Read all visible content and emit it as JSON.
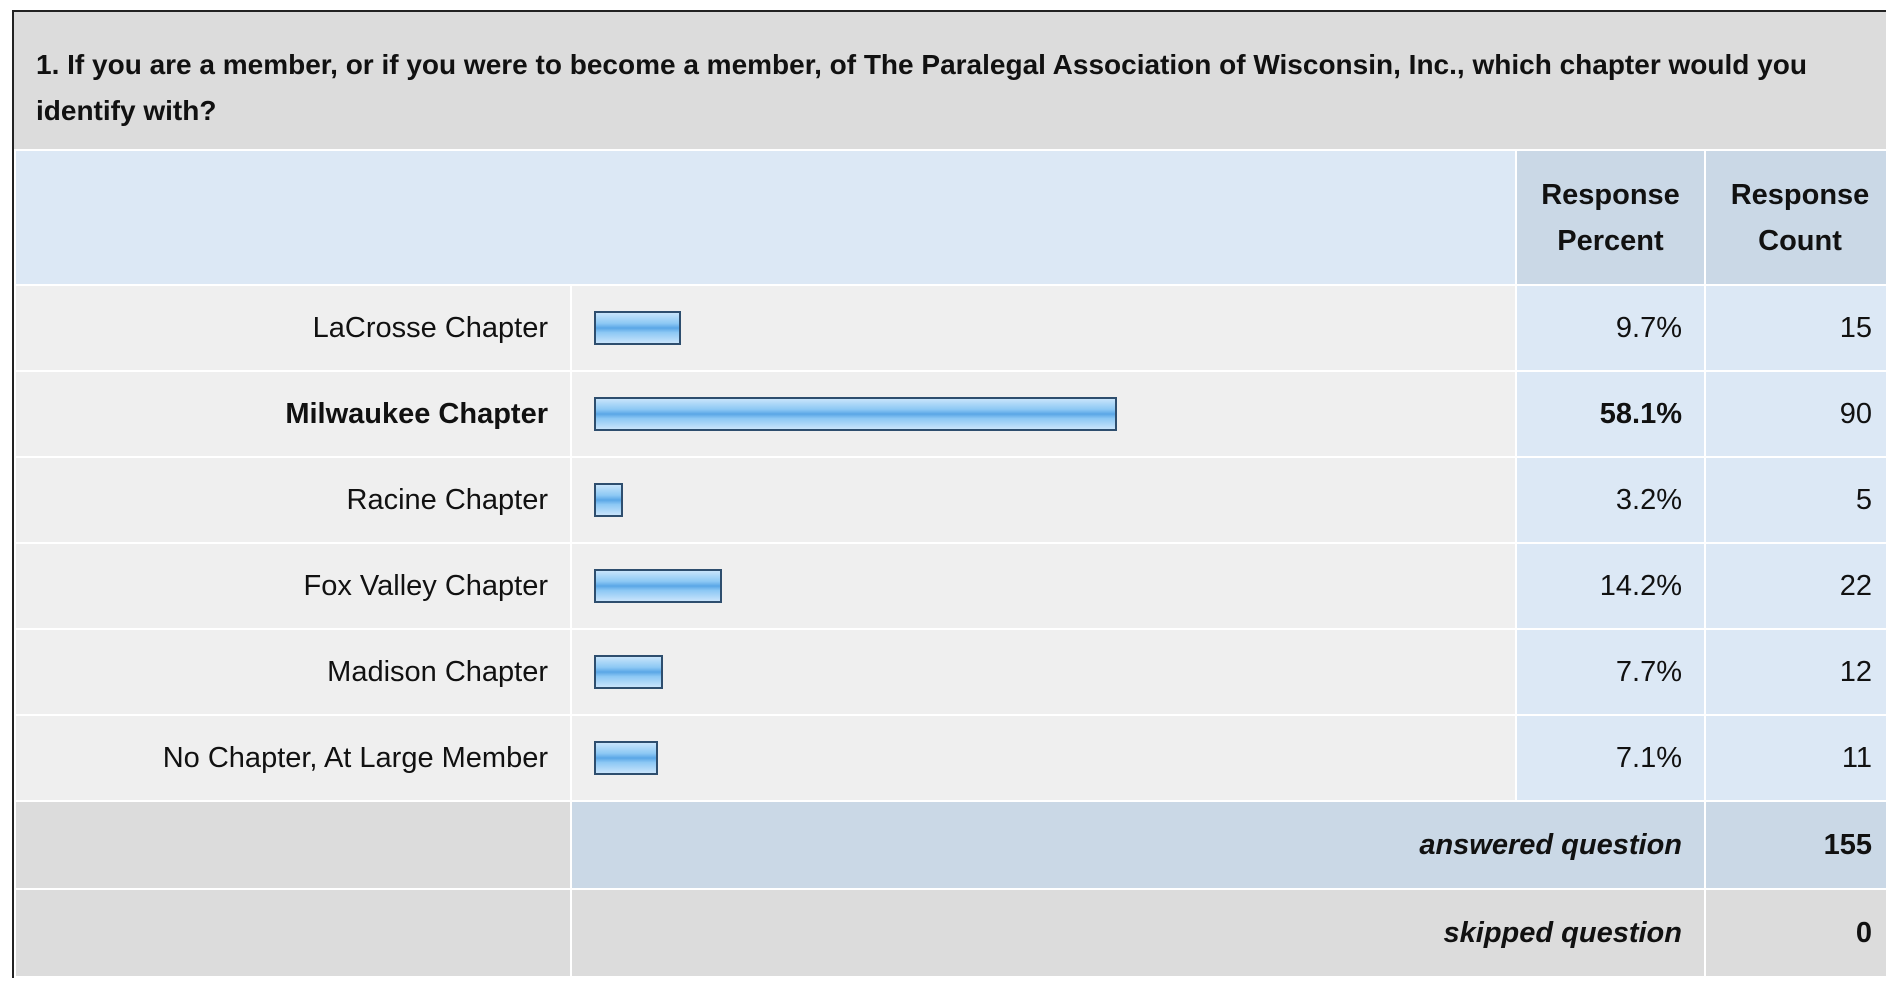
{
  "question": "1. If you are a member, or if you were to become a member, of The Paralegal Association of Wisconsin, Inc., which chapter would you identify with?",
  "headers": [
    "Response Percent",
    "Response Count"
  ],
  "rows": [
    {
      "label": "LaCrosse Chapter",
      "percent": 9.7,
      "percent_label": "9.7%",
      "count": 15
    },
    {
      "label": "Milwaukee Chapter",
      "percent": 58.1,
      "percent_label": "58.1%",
      "count": 90
    },
    {
      "label": "Racine Chapter",
      "percent": 3.2,
      "percent_label": "3.2%",
      "count": 5
    },
    {
      "label": "Fox Valley Chapter",
      "percent": 14.2,
      "percent_label": "14.2%",
      "count": 22
    },
    {
      "label": "Madison Chapter",
      "percent": 7.7,
      "percent_label": "7.7%",
      "count": 12
    },
    {
      "label": "No Chapter, At Large Member",
      "percent": 7.1,
      "percent_label": "7.1%",
      "count": 11
    }
  ],
  "answered": {
    "label": "answered question",
    "value": 155
  },
  "skipped": {
    "label": "skipped question",
    "value": 0
  }
}
